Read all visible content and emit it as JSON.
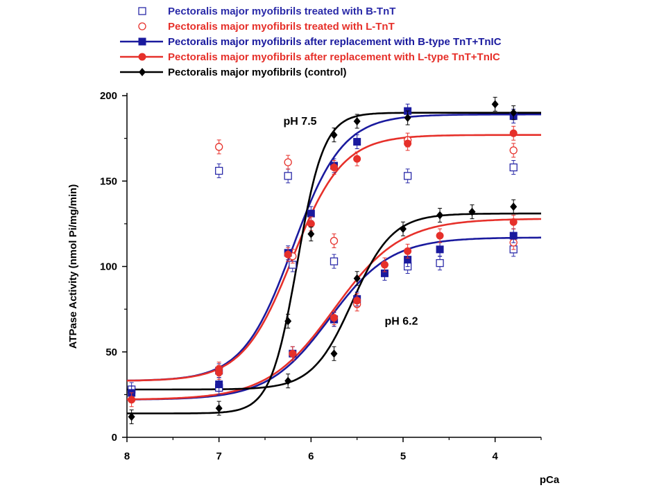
{
  "chart_data": {
    "type": "scatter",
    "xlabel": "pCa",
    "ylabel": "ATPase Activity (nmol Pi/mg/min)",
    "x_reversed": true,
    "xlim": [
      8,
      3.5
    ],
    "ylim": [
      0,
      200
    ],
    "x_ticks": [
      "8",
      "7",
      "6",
      "5",
      "4"
    ],
    "y_ticks": [
      "0",
      "50",
      "100",
      "150",
      "200"
    ],
    "grid": false,
    "legend_position": "top",
    "annotations": [
      {
        "text": "pH 7.5",
        "x": 6.3,
        "y": 183
      },
      {
        "text": "pH 6.2",
        "x": 5.2,
        "y": 66
      }
    ],
    "series": [
      {
        "name": "Pectoralis major myofibrils treated with B-TnT",
        "color": "#2a2aa8",
        "marker": "square-open",
        "line": false,
        "groups": [
          {
            "label": "pH 7.5",
            "x": [
              7.95,
              7.0,
              6.25,
              5.75,
              4.95,
              3.8
            ],
            "y": [
              28,
              156,
              153,
              103,
              153,
              158
            ]
          },
          {
            "label": "pH 6.2",
            "x": [
              7.0,
              6.2,
              5.75,
              4.95,
              4.6,
              3.8
            ],
            "y": [
              29,
              101,
              69,
              100,
              102,
              110
            ]
          }
        ]
      },
      {
        "name": "Pectoralis major myofibrils treated with L-TnT",
        "color": "#e6302a",
        "marker": "circle-open",
        "line": false,
        "groups": [
          {
            "label": "pH 7.5",
            "x": [
              7.0,
              6.25,
              5.75,
              4.95,
              3.8
            ],
            "y": [
              170,
              161,
              115,
              174,
              168
            ]
          },
          {
            "label": "pH 6.2",
            "x": [
              6.2,
              5.75,
              5.5,
              3.8
            ],
            "y": [
              106,
              69,
              78,
              114
            ]
          }
        ]
      },
      {
        "name": "Pectoralis major myofibrils after replacement with B-type TnT+TnIC",
        "color": "#1a1a9e",
        "marker": "square-filled",
        "line": true,
        "groups": [
          {
            "label": "pH 7.5",
            "x": [
              7.95,
              7.0,
              6.25,
              6.0,
              5.75,
              5.5,
              4.95,
              3.8
            ],
            "y": [
              26,
              31,
              108,
              131,
              159,
              173,
              191,
              188
            ],
            "fit": {
              "bottom": 33,
              "top": 189,
              "ec50": 6.2,
              "hill": 1.6
            }
          },
          {
            "label": "pH 6.2",
            "x": [
              7.0,
              6.2,
              5.75,
              5.5,
              5.2,
              4.95,
              4.6,
              3.8
            ],
            "y": [
              39,
              49,
              69,
              81,
              96,
              104,
              110,
              118
            ],
            "fit": {
              "bottom": 22,
              "top": 117,
              "ec50": 5.8,
              "hill": 1.3
            }
          }
        ]
      },
      {
        "name": "Pectoralis major myofibrils after replacement with L-type TnT+TnIC",
        "color": "#e6302a",
        "marker": "circle-filled",
        "line": true,
        "groups": [
          {
            "label": "pH 7.5",
            "x": [
              7.95,
              7.0,
              6.25,
              6.0,
              5.75,
              5.5,
              4.95,
              3.8
            ],
            "y": [
              22,
              40,
              107,
              125,
              158,
              163,
              172,
              178
            ],
            "fit": {
              "bottom": 33,
              "top": 177,
              "ec50": 6.2,
              "hill": 1.6
            }
          },
          {
            "label": "pH 6.2",
            "x": [
              7.0,
              6.2,
              5.75,
              5.5,
              5.2,
              4.95,
              4.6,
              3.8
            ],
            "y": [
              38,
              49,
              70,
              80,
              101,
              109,
              118,
              126
            ],
            "fit": {
              "bottom": 22,
              "top": 128,
              "ec50": 5.75,
              "hill": 1.2
            }
          }
        ]
      },
      {
        "name": "Pectoralis major  myofibrils (control)",
        "color": "#000000",
        "marker": "diamond-filled",
        "line": true,
        "groups": [
          {
            "label": "pH 7.5",
            "x": [
              7.95,
              7.0,
              6.25,
              6.0,
              5.75,
              5.5,
              4.95,
              4.0,
              3.8
            ],
            "y": [
              12,
              17,
              68,
              119,
              177,
              185,
              187,
              195,
              190
            ],
            "fit": {
              "bottom": 14,
              "top": 190,
              "ec50": 6.15,
              "hill": 3.0
            }
          },
          {
            "label": "pH 6.2",
            "x": [
              6.25,
              5.75,
              5.5,
              5.0,
              4.6,
              4.25,
              3.8
            ],
            "y": [
              33,
              49,
              93,
              122,
              130,
              132,
              135
            ],
            "fit": {
              "bottom": 28,
              "top": 131,
              "ec50": 5.55,
              "hill": 2.0
            }
          }
        ]
      }
    ]
  }
}
